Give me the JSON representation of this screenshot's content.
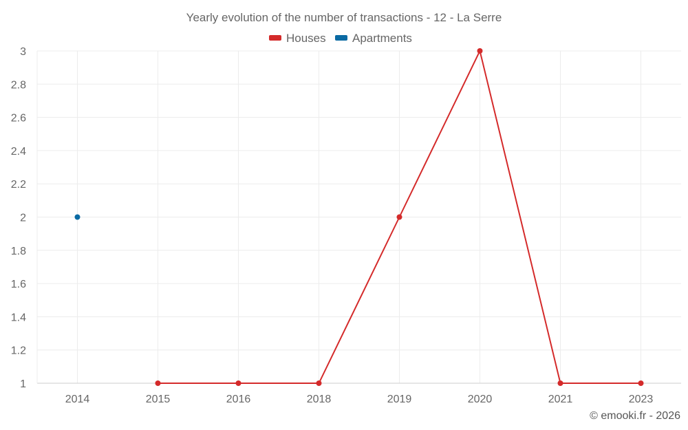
{
  "chart_data": {
    "type": "line",
    "title": "Yearly evolution of the number of transactions - 12 - La Serre",
    "categories": [
      "2014",
      "2015",
      "2016",
      "2018",
      "2019",
      "2020",
      "2021",
      "2023"
    ],
    "series": [
      {
        "name": "Houses",
        "color": "#d42a2a",
        "values": [
          null,
          1,
          1,
          1,
          2,
          3,
          1,
          1
        ]
      },
      {
        "name": "Apartments",
        "color": "#0a6aa3",
        "values": [
          2,
          null,
          null,
          null,
          null,
          null,
          null,
          null
        ]
      }
    ],
    "y_ticks": [
      "1",
      "1.2",
      "1.4",
      "1.6",
      "1.8",
      "2",
      "2.2",
      "2.4",
      "2.6",
      "2.8",
      "3"
    ],
    "ylim": [
      1,
      3
    ],
    "grid": true,
    "legend_position": "top"
  },
  "credit": "© emooki.fr - 2026"
}
